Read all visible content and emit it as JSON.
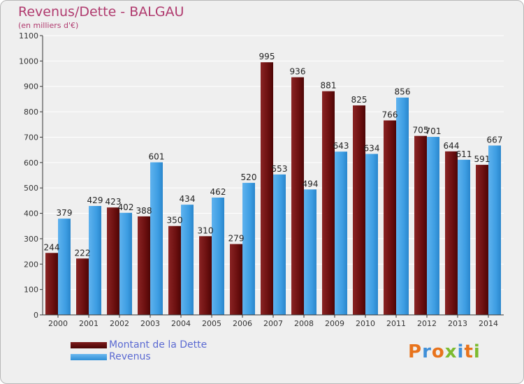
{
  "title": "Revenus/Dette - BALGAU",
  "subtitle": "(en milliers d'€)",
  "logo_text": "Proxiti",
  "colors": {
    "debt": "#6b0f0f",
    "revenue": "#3e9ee3",
    "title": "#b03a6e",
    "legend_text": "#5b6ad2"
  },
  "legend": [
    {
      "label": "Montant de la Dette",
      "color": "debt"
    },
    {
      "label": "Revenus",
      "color": "revenue"
    }
  ],
  "chart_data": {
    "type": "bar",
    "title": "Revenus/Dette - BALGAU",
    "subtitle": "(en milliers d'€)",
    "categories": [
      "2000",
      "2001",
      "2002",
      "2003",
      "2004",
      "2005",
      "2006",
      "2007",
      "2008",
      "2009",
      "2010",
      "2011",
      "2012",
      "2013",
      "2014"
    ],
    "series": [
      {
        "name": "Montant de la Dette",
        "values": [
          244,
          222,
          423,
          388,
          350,
          310,
          279,
          995,
          936,
          881,
          825,
          766,
          705,
          644,
          591
        ]
      },
      {
        "name": "Revenus",
        "values": [
          379,
          429,
          402,
          601,
          434,
          462,
          520,
          553,
          494,
          643,
          634,
          856,
          701,
          611,
          667
        ]
      }
    ],
    "ylim": [
      0,
      1100
    ],
    "yticks": [
      0,
      100,
      200,
      300,
      400,
      500,
      600,
      700,
      800,
      900,
      1000,
      1100
    ],
    "grid": true,
    "legend_position": "bottom-left"
  }
}
